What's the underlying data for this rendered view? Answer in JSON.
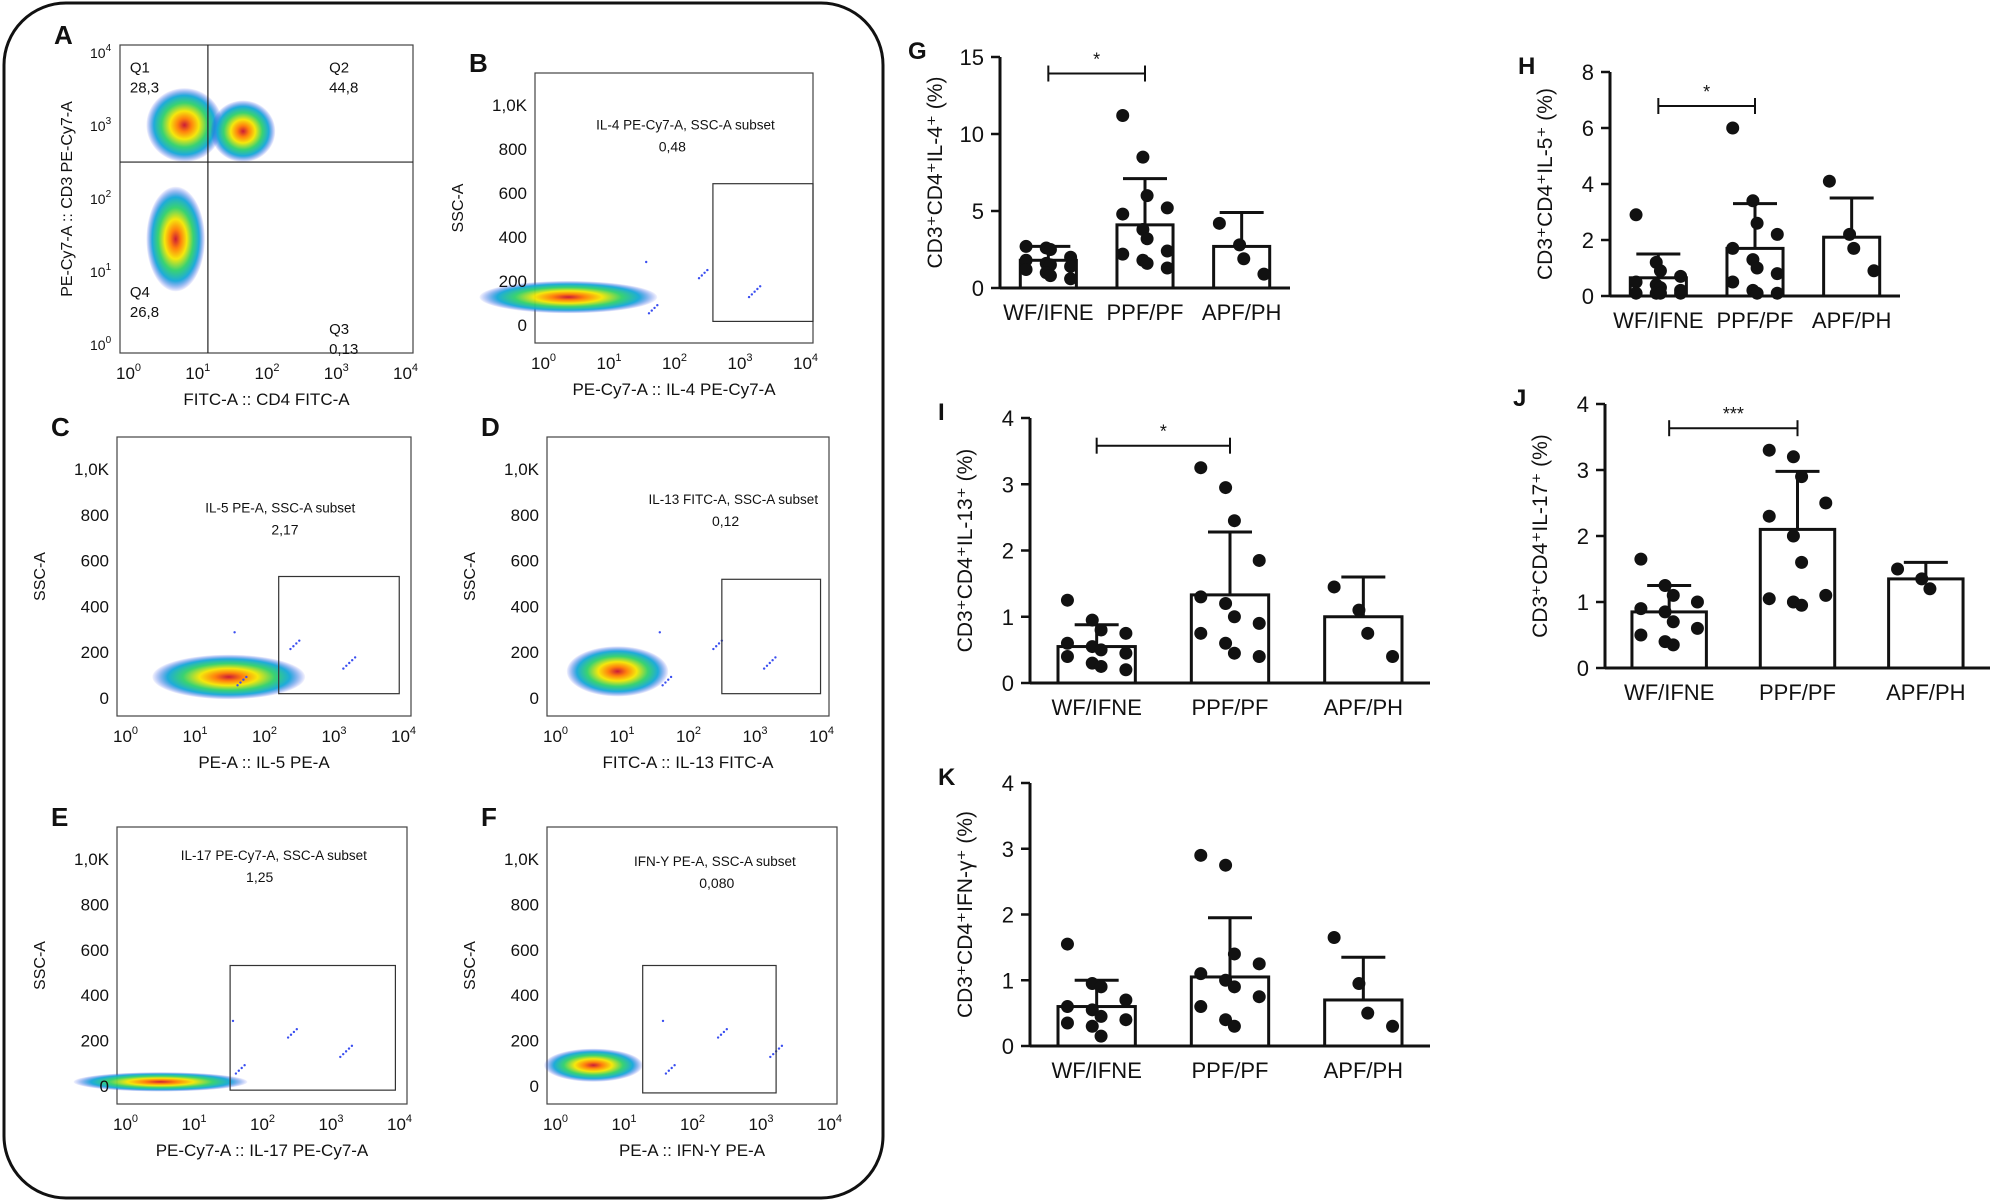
{
  "flow_panels": [
    {
      "letter": "A",
      "type": "quadrant",
      "xlabel": "FITC-A :: CD4 FITC-A",
      "ylabel": "PE-Cy7-A :: CD3 PE-Cy7-A",
      "quadrants": [
        {
          "name": "Q1",
          "value": "28,3"
        },
        {
          "name": "Q2",
          "value": "44,8"
        },
        {
          "name": "Q3",
          "value": "0,13"
        },
        {
          "name": "Q4",
          "value": "26,8"
        }
      ]
    },
    {
      "letter": "B",
      "type": "gate",
      "xlabel": "PE-Cy7-A :: IL-4 PE-Cy7-A",
      "ylabel": "SSC-A",
      "gate_label": "IL-4 PE-Cy7-A, SSC-A subset",
      "gate_value": "0,48"
    },
    {
      "letter": "C",
      "type": "gate",
      "xlabel": "PE-A :: IL-5 PE-A",
      "ylabel": "SSC-A",
      "gate_label": "IL-5 PE-A, SSC-A subset",
      "gate_value": "2,17"
    },
    {
      "letter": "D",
      "type": "gate",
      "xlabel": "FITC-A :: IL-13 FITC-A",
      "ylabel": "SSC-A",
      "gate_label": "IL-13 FITC-A, SSC-A subset",
      "gate_value": "0,12"
    },
    {
      "letter": "E",
      "type": "gate",
      "xlabel": "PE-Cy7-A :: IL-17 PE-Cy7-A",
      "ylabel": "SSC-A",
      "gate_label": "IL-17 PE-Cy7-A, SSC-A subset",
      "gate_value": "1,25"
    },
    {
      "letter": "F",
      "type": "gate",
      "xlabel": "PE-A :: IFN-Y PE-A",
      "ylabel": "SSC-A",
      "gate_label": "IFN-Y PE-A, SSC-A subset",
      "gate_value": "0,080"
    }
  ],
  "flow_axis": {
    "log_ticks": [
      "10",
      "10",
      "10",
      "10",
      "10"
    ],
    "log_exps": [
      "0",
      "1",
      "2",
      "3",
      "4"
    ],
    "ssc_ticks": [
      "0",
      "200",
      "400",
      "600",
      "800",
      "1,0K"
    ]
  },
  "chart_data": [
    {
      "panel": "G",
      "type": "bar",
      "categories": [
        "WF/IFNE",
        "PPF/PF",
        "APF/PH"
      ],
      "ylabel": "CD3⁺CD4⁺IL-4⁺  (%)",
      "ylim": [
        0,
        15
      ],
      "yticks": [
        0,
        5,
        10,
        15
      ],
      "values": [
        1.8,
        4.1,
        2.7
      ],
      "errors": [
        0.9,
        3.0,
        2.2
      ],
      "points": [
        [
          2.7,
          2.6,
          2.5,
          2.0,
          1.8,
          1.6,
          1.5,
          1.4,
          1.2,
          1.0,
          0.8,
          0.6
        ],
        [
          11.2,
          8.5,
          6.0,
          5.2,
          4.8,
          3.8,
          3.2,
          2.4,
          2.2,
          1.8,
          1.6,
          1.3
        ],
        [
          4.2,
          2.8,
          1.9,
          0.9
        ]
      ],
      "significance": {
        "from": 0,
        "to": 1,
        "label": "*"
      }
    },
    {
      "panel": "H",
      "type": "bar",
      "categories": [
        "WF/IFNE",
        "PPF/PF",
        "APF/PH"
      ],
      "ylabel": "CD3⁺CD4⁺IL-5⁺  (%)",
      "ylim": [
        0,
        8
      ],
      "yticks": [
        0,
        2,
        4,
        6,
        8
      ],
      "values": [
        0.65,
        1.7,
        2.1
      ],
      "errors": [
        0.85,
        1.6,
        1.4
      ],
      "points": [
        [
          2.9,
          1.2,
          0.9,
          0.7,
          0.5,
          0.4,
          0.3,
          0.2,
          0.1,
          0.1,
          0.1,
          0.1
        ],
        [
          6.0,
          3.4,
          2.6,
          2.2,
          1.7,
          1.3,
          1.0,
          0.8,
          0.5,
          0.2,
          0.1,
          0.1
        ],
        [
          4.1,
          2.2,
          1.7,
          0.9
        ]
      ],
      "significance": {
        "from": 0,
        "to": 1,
        "label": "*"
      }
    },
    {
      "panel": "I",
      "type": "bar",
      "categories": [
        "WF/IFNE",
        "PPF/PF",
        "APF/PH"
      ],
      "ylabel": "CD3⁺CD4⁺IL-13⁺  (%)",
      "ylim": [
        0,
        4
      ],
      "yticks": [
        0,
        1,
        2,
        3,
        4
      ],
      "values": [
        0.55,
        1.33,
        1.0
      ],
      "errors": [
        0.33,
        0.95,
        0.6
      ],
      "points": [
        [
          1.25,
          0.95,
          0.8,
          0.75,
          0.6,
          0.55,
          0.5,
          0.45,
          0.4,
          0.3,
          0.25,
          0.2
        ],
        [
          3.25,
          2.95,
          2.45,
          1.85,
          1.3,
          1.2,
          1.0,
          0.9,
          0.75,
          0.6,
          0.45,
          0.4
        ],
        [
          1.45,
          1.1,
          0.75,
          0.4
        ]
      ],
      "significance": {
        "from": 0,
        "to": 1,
        "label": "*"
      }
    },
    {
      "panel": "J",
      "type": "bar",
      "categories": [
        "WF/IFNE",
        "PPF/PF",
        "APF/PH"
      ],
      "ylabel": "CD3⁺CD4⁺IL-17⁺  (%)",
      "ylim": [
        0,
        4
      ],
      "yticks": [
        0,
        1,
        2,
        3,
        4
      ],
      "values": [
        0.85,
        2.1,
        1.35
      ],
      "errors": [
        0.4,
        0.88,
        0.25
      ],
      "points": [
        [
          1.65,
          1.25,
          1.1,
          1.0,
          0.9,
          0.85,
          0.7,
          0.6,
          0.5,
          0.4,
          0.35
        ],
        [
          3.3,
          3.2,
          2.9,
          2.5,
          2.3,
          2.0,
          1.6,
          1.1,
          1.05,
          1.0,
          0.95
        ],
        [
          1.5,
          1.35,
          1.2
        ]
      ],
      "significance": {
        "from": 0,
        "to": 1,
        "label": "***"
      }
    },
    {
      "panel": "K",
      "type": "bar",
      "categories": [
        "WF/IFNE",
        "PPF/PF",
        "APF/PH"
      ],
      "ylabel": "CD3⁺CD4⁺IFN-γ⁺  (%)",
      "ylim": [
        0,
        4
      ],
      "yticks": [
        0,
        1,
        2,
        3,
        4
      ],
      "values": [
        0.6,
        1.05,
        0.7
      ],
      "errors": [
        0.4,
        0.9,
        0.65
      ],
      "points": [
        [
          1.55,
          0.95,
          0.9,
          0.7,
          0.6,
          0.55,
          0.45,
          0.4,
          0.35,
          0.3,
          0.15
        ],
        [
          2.9,
          2.75,
          1.4,
          1.25,
          1.1,
          1.0,
          0.9,
          0.75,
          0.6,
          0.4,
          0.3
        ],
        [
          1.65,
          0.95,
          0.5,
          0.3
        ]
      ],
      "significance": null
    }
  ]
}
